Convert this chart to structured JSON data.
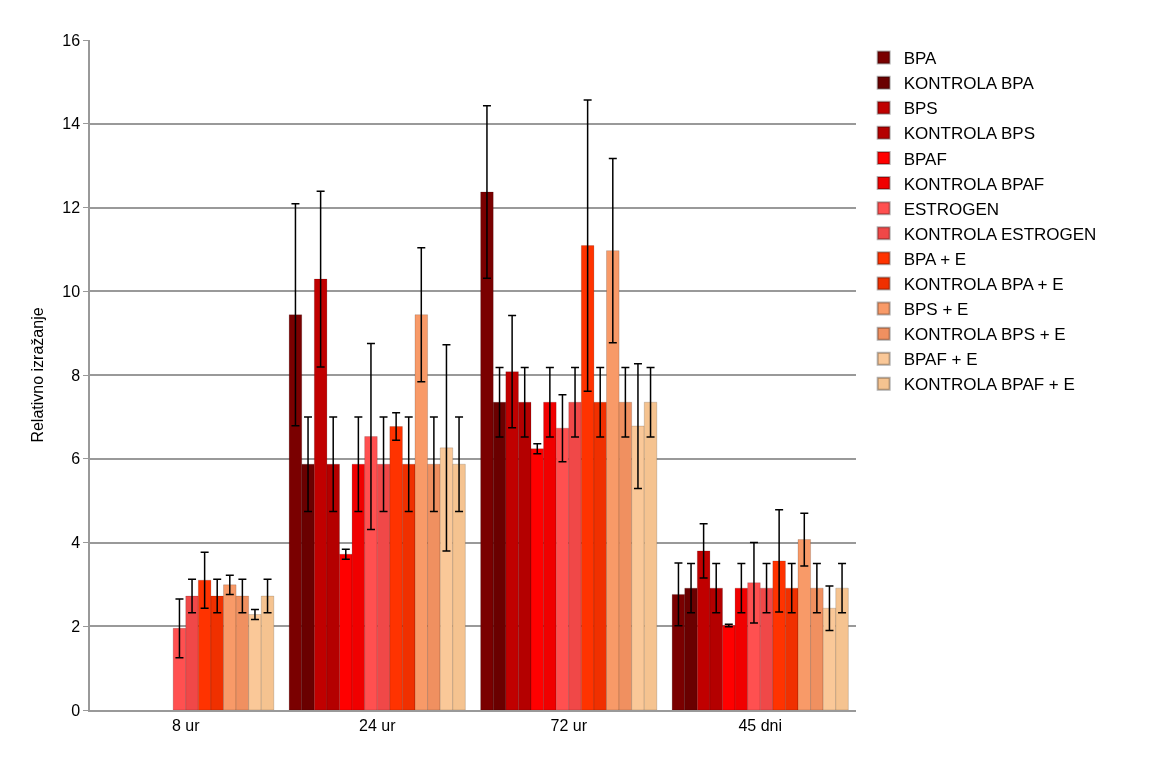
{
  "chart_data": {
    "type": "bar",
    "ylabel": "Relativno izražanje",
    "categories": [
      "8 ur",
      "24 ur",
      "72 ur",
      "45 dni"
    ],
    "ylim": [
      0,
      16
    ],
    "yticks": [
      0,
      2,
      4,
      6,
      8,
      10,
      12,
      14,
      16
    ],
    "grid": "y",
    "legend": "right",
    "series": [
      {
        "name": "BPA",
        "color": "#7a0000",
        "values": [
          null,
          9.44,
          12.37,
          2.76
        ],
        "errors": [
          null,
          2.65,
          2.06,
          0.75
        ]
      },
      {
        "name": "KONTROLA BPA",
        "color": "#6a0000",
        "values": [
          null,
          5.87,
          7.35,
          2.91
        ],
        "errors": [
          null,
          1.13,
          0.83,
          0.59
        ]
      },
      {
        "name": "BPS",
        "color": "#c00000",
        "values": [
          null,
          10.29,
          8.08,
          3.8
        ],
        "errors": [
          null,
          2.1,
          1.34,
          0.65
        ]
      },
      {
        "name": "KONTROLA BPS",
        "color": "#b40000",
        "values": [
          null,
          5.87,
          7.35,
          2.91
        ],
        "errors": [
          null,
          1.13,
          0.83,
          0.59
        ]
      },
      {
        "name": "BPAF",
        "color": "#ff0000",
        "values": [
          null,
          3.72,
          6.24,
          2.02
        ],
        "errors": [
          null,
          0.12,
          0.12,
          0.03
        ]
      },
      {
        "name": "KONTROLA BPAF",
        "color": "#f00000",
        "values": [
          null,
          5.87,
          7.35,
          2.91
        ],
        "errors": [
          null,
          1.13,
          0.83,
          0.59
        ]
      },
      {
        "name": "ESTROGEN",
        "color": "#ff5050",
        "values": [
          1.95,
          6.53,
          6.73,
          3.04
        ],
        "errors": [
          0.7,
          2.22,
          0.8,
          0.96
        ]
      },
      {
        "name": "KONTROLA ESTROGEN",
        "color": "#f04848",
        "values": [
          2.72,
          5.87,
          7.35,
          2.91
        ],
        "errors": [
          0.4,
          1.13,
          0.83,
          0.59
        ]
      },
      {
        "name": "BPA + E",
        "color": "#ff3300",
        "values": [
          3.1,
          6.77,
          11.09,
          3.56
        ],
        "errors": [
          0.67,
          0.33,
          3.48,
          1.22
        ]
      },
      {
        "name": "KONTROLA BPA + E",
        "color": "#f03000",
        "values": [
          2.72,
          5.87,
          7.35,
          2.91
        ],
        "errors": [
          0.4,
          1.13,
          0.83,
          0.59
        ]
      },
      {
        "name": "BPS + E",
        "color": "#f89a68",
        "values": [
          2.99,
          9.44,
          10.97,
          4.07
        ],
        "errors": [
          0.23,
          1.6,
          2.2,
          0.63
        ]
      },
      {
        "name": "KONTROLA BPS + E",
        "color": "#f09060",
        "values": [
          2.72,
          5.87,
          7.35,
          2.91
        ],
        "errors": [
          0.4,
          1.13,
          0.83,
          0.59
        ]
      },
      {
        "name": "BPAF + E",
        "color": "#fac898",
        "values": [
          2.28,
          6.26,
          6.78,
          2.43
        ],
        "errors": [
          0.12,
          2.46,
          1.49,
          0.53
        ]
      },
      {
        "name": "KONTROLA BPAF + E",
        "color": "#f5c390",
        "values": [
          2.72,
          5.87,
          7.35,
          2.91
        ],
        "errors": [
          0.4,
          1.13,
          0.83,
          0.59
        ]
      }
    ]
  }
}
